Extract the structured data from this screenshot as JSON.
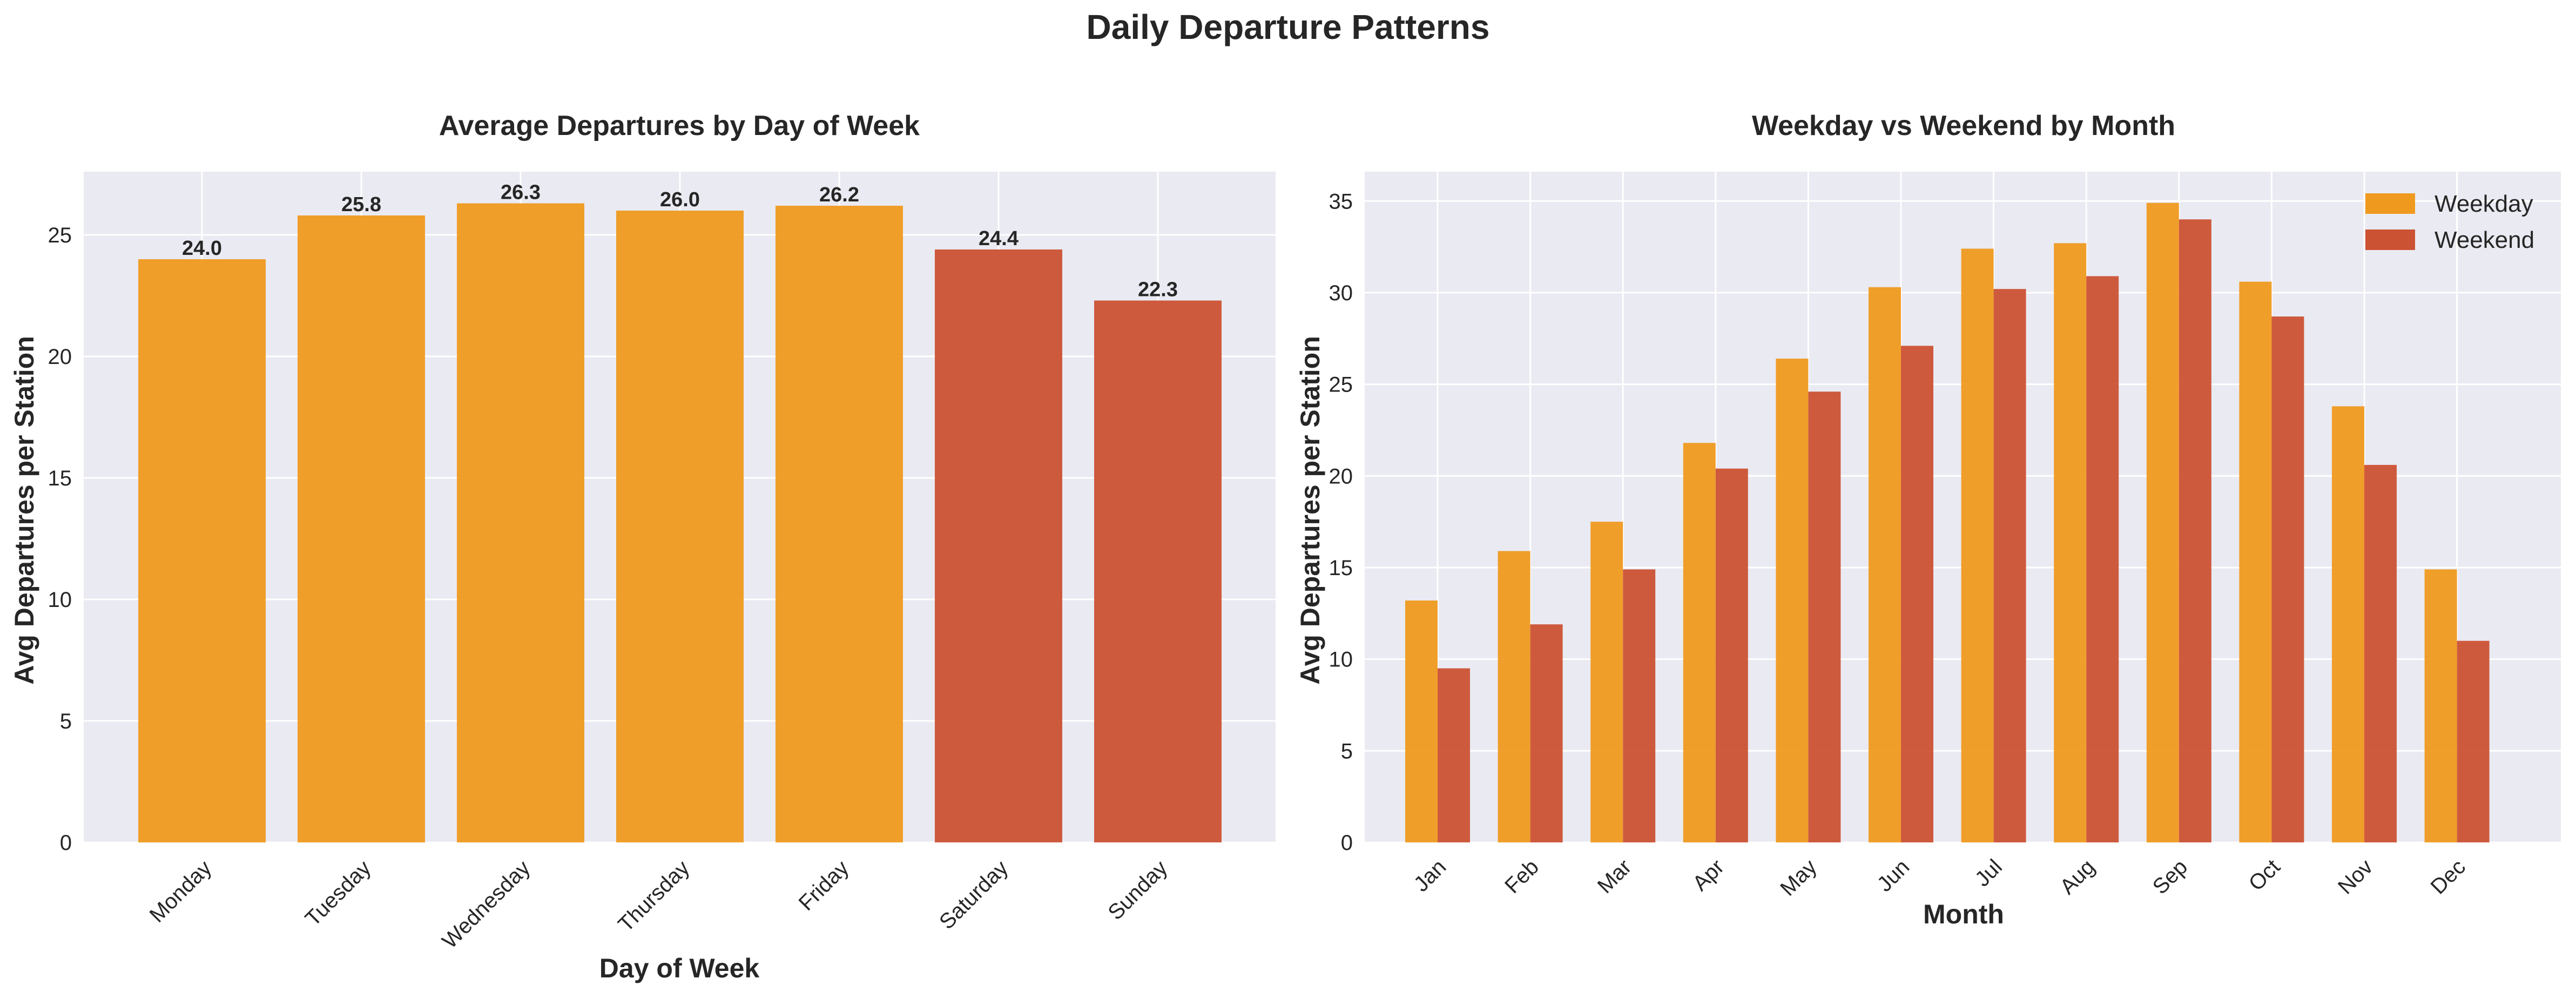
{
  "figure": {
    "title": "Daily Departure Patterns"
  },
  "colors": {
    "weekday": "#ef9a1f",
    "weekend": "#cc5234",
    "plot_bg": "#eaeaf2",
    "grid": "#ffffff"
  },
  "chart_data": [
    {
      "type": "bar",
      "title": "Average Departures by Day of Week",
      "xlabel": "Day of Week",
      "ylabel": "Avg Departures per Station",
      "categories": [
        "Monday",
        "Tuesday",
        "Wednesday",
        "Thursday",
        "Friday",
        "Saturday",
        "Sunday"
      ],
      "values": [
        24.0,
        25.8,
        26.3,
        26.0,
        26.2,
        24.4,
        22.3
      ],
      "value_labels": [
        "24.0",
        "25.8",
        "26.3",
        "26.0",
        "26.2",
        "24.4",
        "22.3"
      ],
      "bar_groups": [
        "weekday",
        "weekday",
        "weekday",
        "weekday",
        "weekday",
        "weekend",
        "weekend"
      ],
      "ylim": [
        0,
        27.6
      ],
      "yticks": [
        0,
        5,
        10,
        15,
        20,
        25
      ],
      "grid": true
    },
    {
      "type": "bar",
      "title": "Weekday vs Weekend by Month",
      "xlabel": "Month",
      "ylabel": "Avg Departures per Station",
      "categories": [
        "Jan",
        "Feb",
        "Mar",
        "Apr",
        "May",
        "Jun",
        "Jul",
        "Aug",
        "Sep",
        "Oct",
        "Nov",
        "Dec"
      ],
      "series": [
        {
          "name": "Weekday",
          "color": "#ef9a1f",
          "values": [
            13.2,
            15.9,
            17.5,
            21.8,
            26.4,
            30.3,
            32.4,
            32.7,
            34.9,
            30.6,
            23.8,
            14.9
          ]
        },
        {
          "name": "Weekend",
          "color": "#cc5234",
          "values": [
            9.5,
            11.9,
            14.9,
            20.4,
            24.6,
            27.1,
            30.2,
            30.9,
            34.0,
            28.7,
            20.6,
            11.0
          ]
        }
      ],
      "ylim": [
        0,
        36.6
      ],
      "yticks": [
        0,
        5,
        10,
        15,
        20,
        25,
        30,
        35
      ],
      "legend": "top-right",
      "grid": true
    }
  ]
}
